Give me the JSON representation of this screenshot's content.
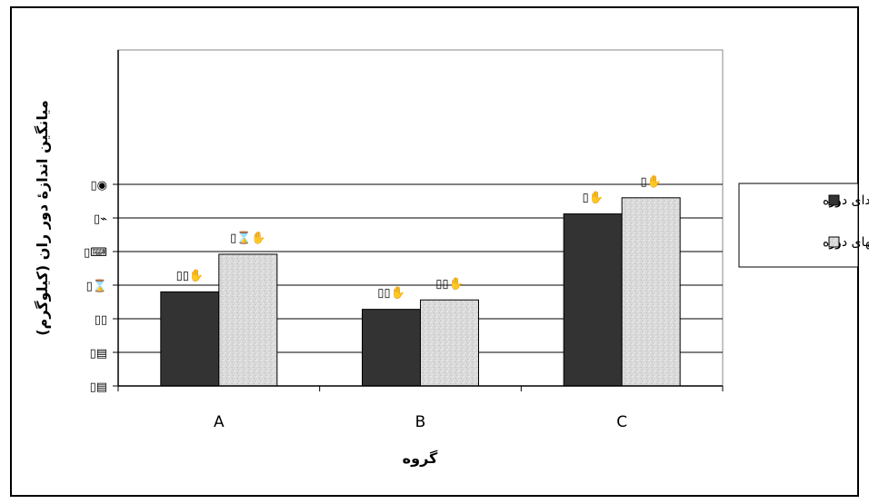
{
  "chart_data": {
    "type": "bar",
    "title": "",
    "xlabel": "گروه",
    "ylabel": "میانگین اندازۀ دور ران (کیلوگرم)",
    "ylim": [
      0,
      50
    ],
    "yticks": [
      {
        "value": 0,
        "label": "▯▤"
      },
      {
        "value": 5,
        "label": "▯▤"
      },
      {
        "value": 10,
        "label": "▯▯"
      },
      {
        "value": 15,
        "label": "▯⌛"
      },
      {
        "value": 20,
        "label": "▯⌨"
      },
      {
        "value": 25,
        "label": "▯⌁"
      },
      {
        "value": 30,
        "label": "▯◉"
      }
    ],
    "categories": [
      "A",
      "B",
      "C"
    ],
    "series": [
      {
        "name": "ابتدای دوره",
        "values": [
          14.0,
          11.4,
          25.6
        ],
        "color": "#333333",
        "data_labels": [
          "▯▯✋",
          "▯▯✋",
          "▯✋"
        ]
      },
      {
        "name": "انتهای دوره",
        "values": [
          19.6,
          12.8,
          28.0
        ],
        "color": "#d6d6d6",
        "data_labels": [
          "▯⌛✋",
          "▯▯✋",
          "▯✋"
        ]
      }
    ],
    "grid": true,
    "legend_position": "right"
  }
}
